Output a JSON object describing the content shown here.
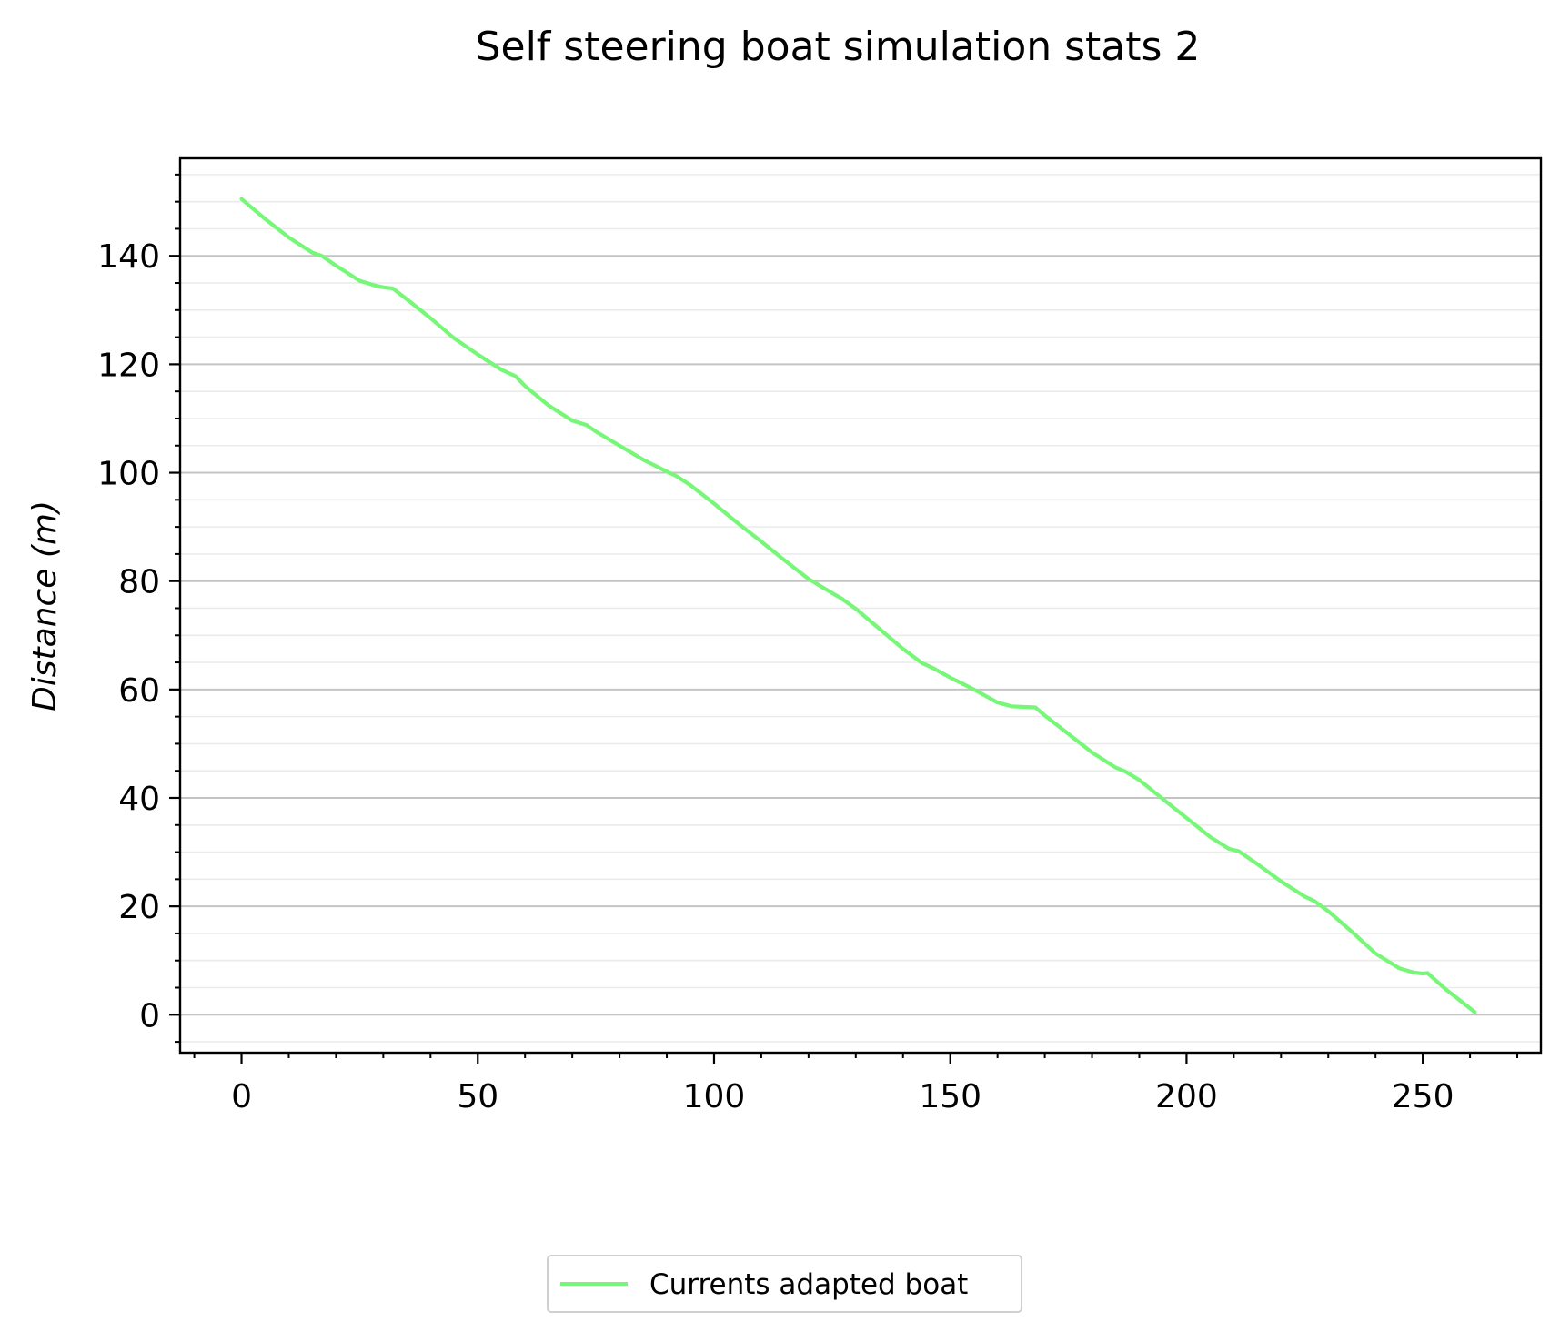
{
  "chart_data": {
    "type": "line",
    "title": "Self steering boat simulation stats 2",
    "xlabel": "",
    "ylabel": "Distance (m)",
    "xlim": [
      -13,
      275
    ],
    "ylim": [
      -7,
      158
    ],
    "xticks": [
      0,
      50,
      100,
      150,
      200,
      250
    ],
    "xtick_labels": [
      "0",
      "50",
      "100",
      "150",
      "200",
      "250"
    ],
    "yticks": [
      0,
      20,
      40,
      60,
      80,
      100,
      120,
      140
    ],
    "ytick_labels": [
      "0",
      "20",
      "40",
      "60",
      "80",
      "100",
      "120",
      "140"
    ],
    "x_minor_step": 10,
    "y_minor_step": 5,
    "grid": {
      "major_y": true,
      "minor_y": true,
      "x": false
    },
    "legend": {
      "position": "bottom-center",
      "outside": true
    },
    "series": [
      {
        "name": "Currents adapted boat",
        "color": "#77f777",
        "x": [
          0,
          5,
          10,
          15,
          17,
          20,
          25,
          28,
          30,
          32,
          35,
          40,
          45,
          50,
          55,
          58,
          60,
          65,
          70,
          73,
          75,
          80,
          85,
          90,
          92,
          95,
          100,
          105,
          110,
          115,
          120,
          125,
          127,
          130,
          135,
          140,
          144,
          146,
          150,
          155,
          160,
          163,
          165,
          168,
          170,
          175,
          180,
          185,
          187,
          190,
          195,
          200,
          205,
          209,
          211,
          215,
          220,
          225,
          227,
          230,
          235,
          240,
          245,
          248,
          250,
          251,
          255,
          261
        ],
        "y": [
          150.5,
          146.8,
          143.4,
          140.6,
          140,
          138.2,
          135.4,
          134.6,
          134.2,
          134,
          132,
          128.5,
          124.8,
          121.8,
          119,
          117.8,
          116,
          112.4,
          109.6,
          108.8,
          107.6,
          105,
          102.4,
          100.2,
          99.4,
          97.7,
          94.3,
          90.7,
          87.3,
          83.8,
          80.4,
          77.8,
          76.8,
          74.9,
          71.2,
          67.5,
          64.9,
          64.1,
          62.2,
          60,
          57.6,
          56.9,
          56.8,
          56.7,
          55.2,
          51.8,
          48.4,
          45.6,
          44.9,
          43.3,
          39.8,
          36.3,
          32.8,
          30.6,
          30.2,
          27.8,
          24.6,
          21.8,
          21,
          19.1,
          15.3,
          11.3,
          8.6,
          7.8,
          7.6,
          7.7,
          4.6,
          0.5
        ]
      }
    ]
  }
}
